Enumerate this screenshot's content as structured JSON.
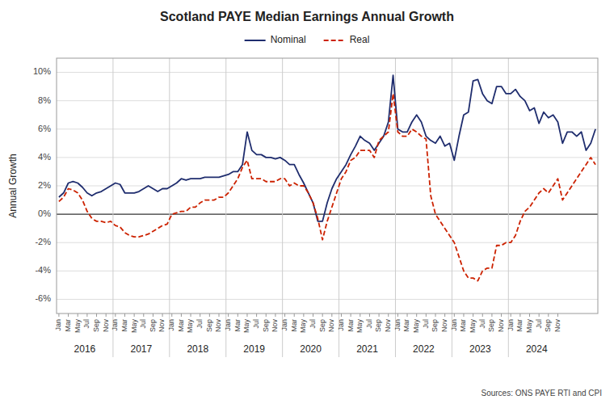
{
  "chart_data": {
    "type": "line",
    "title": "Scotland PAYE Median Earnings Annual Growth",
    "y_label": "Annual Growth",
    "source": "Sources: ONS PAYE RTI and CPI",
    "categories": [
      "Jan",
      null,
      "Mar",
      null,
      "May",
      null,
      "Jul",
      null,
      "Sep",
      null,
      "Nov",
      null,
      "Jan",
      null,
      "Mar",
      null,
      "May",
      null,
      "Jul",
      null,
      "Sep",
      null,
      "Nov",
      null,
      "Jan",
      null,
      "Mar",
      null,
      "May",
      null,
      "Jul",
      null,
      "Sep",
      null,
      "Nov",
      null,
      "Jan",
      null,
      "Mar",
      null,
      "May",
      null,
      "Jul",
      null,
      "Sep",
      null,
      "Nov",
      null,
      "Jan",
      null,
      "Mar",
      null,
      "May",
      null,
      "Jul",
      null,
      "Sep",
      null,
      "Nov",
      null,
      "Jan",
      null,
      "Mar",
      null,
      "May",
      null,
      "Jul",
      null,
      "Sep",
      null,
      "Nov",
      null,
      "Jan",
      null,
      "Mar",
      null,
      "May",
      null,
      "Jul",
      null,
      "Sep",
      null,
      "Nov",
      null,
      "Jan",
      null,
      "Mar",
      null,
      "May",
      null,
      "Jul",
      null,
      "Sep",
      null,
      "Nov",
      null,
      "Jan",
      null,
      "Mar",
      null,
      "May",
      null,
      "Jul",
      null,
      "Sep",
      null,
      "Nov",
      null,
      null,
      null,
      null,
      null,
      null,
      null,
      null
    ],
    "group_labels": [
      "2016",
      "2017",
      "2018",
      "2019",
      "2020",
      "2021",
      "2022",
      "2023",
      "2024"
    ],
    "series": [
      {
        "name": "Nominal",
        "color": "#1F2D6E",
        "line_style": "solid",
        "values": [
          1.2,
          1.5,
          2.2,
          2.3,
          2.2,
          1.9,
          1.5,
          1.3,
          1.5,
          1.6,
          1.8,
          2.0,
          2.2,
          2.1,
          1.5,
          1.5,
          1.5,
          1.6,
          1.8,
          2.0,
          1.8,
          1.6,
          1.8,
          1.8,
          2.0,
          2.2,
          2.5,
          2.4,
          2.5,
          2.5,
          2.5,
          2.6,
          2.6,
          2.6,
          2.6,
          2.7,
          2.8,
          3.0,
          3.0,
          3.5,
          5.8,
          4.5,
          4.2,
          4.2,
          4.0,
          4.0,
          3.9,
          4.0,
          3.8,
          3.5,
          3.5,
          2.8,
          2.2,
          1.5,
          0.8,
          -0.5,
          -0.5,
          0.8,
          1.8,
          2.5,
          3.0,
          3.5,
          4.2,
          4.8,
          5.5,
          5.2,
          5.0,
          4.5,
          5.0,
          5.5,
          6.5,
          9.8,
          6.0,
          5.8,
          5.8,
          6.5,
          7.0,
          6.5,
          5.5,
          5.2,
          5.0,
          5.5,
          4.8,
          5.0,
          3.8,
          5.5,
          7.0,
          7.2,
          9.4,
          9.5,
          8.5,
          8.0,
          7.8,
          9.0,
          9.0,
          8.5,
          8.5,
          8.8,
          8.3,
          8.0,
          7.3,
          7.5,
          6.4,
          7.2,
          6.8,
          7.0,
          6.5,
          5.0,
          5.8,
          5.8,
          5.5,
          5.8,
          4.5,
          5.0,
          6.0
        ]
      },
      {
        "name": "Real",
        "color": "#CC2200",
        "line_style": "dashed",
        "values": [
          0.9,
          1.2,
          1.8,
          1.7,
          1.5,
          1.0,
          0.2,
          -0.3,
          -0.5,
          -0.5,
          -0.6,
          -0.5,
          -0.8,
          -0.9,
          -1.3,
          -1.5,
          -1.6,
          -1.6,
          -1.5,
          -1.4,
          -1.2,
          -1.0,
          -0.8,
          -0.7,
          0.0,
          0.1,
          0.2,
          0.2,
          0.5,
          0.5,
          0.8,
          1.0,
          1.0,
          1.0,
          1.2,
          1.2,
          1.5,
          2.0,
          2.5,
          3.3,
          3.8,
          2.5,
          2.5,
          2.5,
          2.3,
          2.3,
          2.3,
          2.5,
          2.5,
          2.0,
          2.2,
          2.0,
          2.0,
          1.5,
          0.8,
          -0.3,
          -1.8,
          -0.5,
          0.5,
          1.5,
          2.5,
          3.0,
          3.8,
          4.0,
          4.5,
          4.5,
          4.5,
          4.0,
          5.2,
          5.5,
          5.8,
          8.5,
          5.8,
          5.5,
          5.5,
          6.0,
          5.8,
          5.5,
          5.3,
          1.3,
          0.0,
          -0.5,
          -1.0,
          -1.5,
          -2.0,
          -3.0,
          -4.0,
          -4.5,
          -4.5,
          -4.7,
          -4.0,
          -3.8,
          -3.8,
          -2.2,
          -2.2,
          -2.0,
          -2.0,
          -1.5,
          -0.5,
          0.2,
          0.5,
          1.0,
          1.5,
          1.8,
          1.5,
          2.0,
          2.5,
          1.0,
          1.5,
          2.0,
          2.5,
          3.0,
          3.5,
          4.0,
          3.5
        ]
      }
    ],
    "ylim": [
      -7.0,
      11.0
    ],
    "yticks": [
      {
        "value": -6,
        "label": "-6%"
      },
      {
        "value": -4,
        "label": "-4%"
      },
      {
        "value": -2,
        "label": "-2%"
      },
      {
        "value": 0,
        "label": "0%"
      },
      {
        "value": 2,
        "label": "2%"
      },
      {
        "value": 4,
        "label": "4%"
      },
      {
        "value": 6,
        "label": "6%"
      },
      {
        "value": 8,
        "label": "8%"
      },
      {
        "value": 10,
        "label": "10%"
      }
    ],
    "grid": true,
    "legend": "top"
  }
}
